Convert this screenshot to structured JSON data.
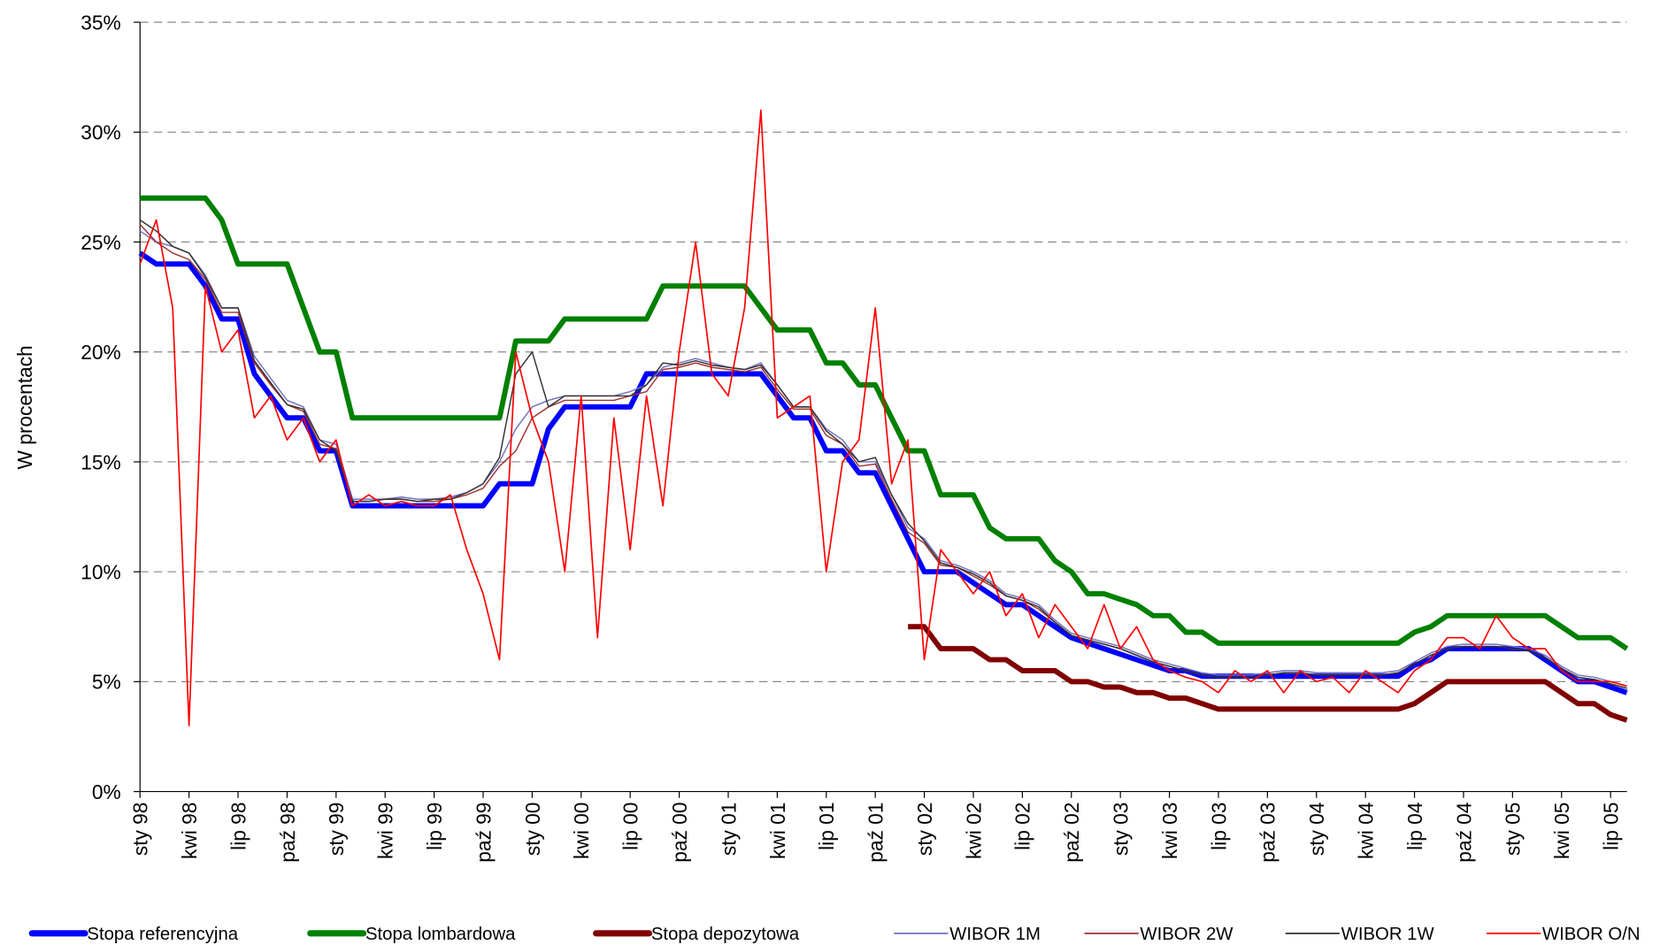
{
  "chart_data": {
    "type": "line",
    "y_label": "W procentach",
    "categories": [
      "sty 98",
      null,
      null,
      "kwi 98",
      null,
      null,
      "lip 98",
      null,
      null,
      "paź 98",
      null,
      null,
      "sty 99",
      null,
      null,
      "kwi 99",
      null,
      null,
      "lip 99",
      null,
      null,
      "paź 99",
      null,
      null,
      "sty 00",
      null,
      null,
      "kwi 00",
      null,
      null,
      "lip 00",
      null,
      null,
      "paź 00",
      null,
      null,
      "sty 01",
      null,
      null,
      "kwi 01",
      null,
      null,
      "lip 01",
      null,
      null,
      "paź 01",
      null,
      null,
      "sty 02",
      null,
      null,
      "kwi 02",
      null,
      null,
      "lip 02",
      null,
      null,
      "paź 02",
      null,
      null,
      "sty 03",
      null,
      null,
      "kwi 03",
      null,
      null,
      "lip 03",
      null,
      null,
      "paź 03",
      null,
      null,
      "sty 04",
      null,
      null,
      "kwi 04",
      null,
      null,
      "lip 04",
      null,
      null,
      "paź 04",
      null,
      null,
      "sty 05",
      null,
      null,
      "kwi 05",
      null,
      null,
      "lip 05",
      null
    ],
    "ylim": [
      0,
      35
    ],
    "yticks": [
      {
        "value": 0,
        "label": "0%"
      },
      {
        "value": 5,
        "label": "5%"
      },
      {
        "value": 10,
        "label": "10%"
      },
      {
        "value": 15,
        "label": "15%"
      },
      {
        "value": 20,
        "label": "20%"
      },
      {
        "value": 25,
        "label": "25%"
      },
      {
        "value": 30,
        "label": "30%"
      },
      {
        "value": 35,
        "label": "35%"
      }
    ],
    "grid": true,
    "legend": "bottom",
    "series": [
      {
        "name": "Stopa referencyjna",
        "color": "#0000ff",
        "width": 5,
        "values": [
          24.5,
          24,
          24,
          24,
          23,
          21.5,
          21.5,
          19,
          18,
          17,
          17,
          15.5,
          15.5,
          13,
          13,
          13,
          13,
          13,
          13,
          13,
          13,
          13,
          14,
          14,
          14,
          16.5,
          17.5,
          17.5,
          17.5,
          17.5,
          17.5,
          19,
          19,
          19,
          19,
          19,
          19,
          19,
          19,
          18,
          17,
          17,
          15.5,
          15.5,
          14.5,
          14.5,
          13,
          11.5,
          10,
          10,
          10,
          9.5,
          9,
          8.5,
          8.5,
          8,
          7.5,
          7,
          6.75,
          6.5,
          6.25,
          6,
          5.75,
          5.5,
          5.5,
          5.25,
          5.25,
          5.25,
          5.25,
          5.25,
          5.25,
          5.25,
          5.25,
          5.25,
          5.25,
          5.25,
          5.25,
          5.25,
          5.75,
          6,
          6.5,
          6.5,
          6.5,
          6.5,
          6.5,
          6.5,
          6,
          5.5,
          5,
          5,
          4.75,
          4.5
        ]
      },
      {
        "name": "Stopa lombardowa",
        "color": "#008000",
        "width": 5,
        "values": [
          27,
          27,
          27,
          27,
          27,
          26,
          24,
          24,
          24,
          24,
          22,
          20,
          20,
          17,
          17,
          17,
          17,
          17,
          17,
          17,
          17,
          17,
          17,
          20.5,
          20.5,
          20.5,
          21.5,
          21.5,
          21.5,
          21.5,
          21.5,
          21.5,
          23,
          23,
          23,
          23,
          23,
          23,
          22,
          21,
          21,
          21,
          19.5,
          19.5,
          18.5,
          18.5,
          17,
          15.5,
          15.5,
          13.5,
          13.5,
          13.5,
          12,
          11.5,
          11.5,
          11.5,
          10.5,
          10,
          9,
          9,
          8.75,
          8.5,
          8,
          8,
          7.25,
          7.25,
          6.75,
          6.75,
          6.75,
          6.75,
          6.75,
          6.75,
          6.75,
          6.75,
          6.75,
          6.75,
          6.75,
          6.75,
          7.25,
          7.5,
          8,
          8,
          8,
          8,
          8,
          8,
          8,
          7.5,
          7,
          7,
          7,
          6.5
        ]
      },
      {
        "name": "Stopa depozytowa",
        "color": "#800000",
        "width": 5,
        "values": [
          null,
          null,
          null,
          null,
          null,
          null,
          null,
          null,
          null,
          null,
          null,
          null,
          null,
          null,
          null,
          null,
          null,
          null,
          null,
          null,
          null,
          null,
          null,
          null,
          null,
          null,
          null,
          null,
          null,
          null,
          null,
          null,
          null,
          null,
          null,
          null,
          null,
          null,
          null,
          null,
          null,
          null,
          null,
          null,
          null,
          null,
          null,
          7.5,
          7.5,
          6.5,
          6.5,
          6.5,
          6,
          6,
          5.5,
          5.5,
          5.5,
          5,
          5,
          4.75,
          4.75,
          4.5,
          4.5,
          4.25,
          4.25,
          4,
          3.75,
          3.75,
          3.75,
          3.75,
          3.75,
          3.75,
          3.75,
          3.75,
          3.75,
          3.75,
          3.75,
          3.75,
          4,
          4.5,
          5,
          5,
          5,
          5,
          5,
          5,
          5,
          4.5,
          4,
          4,
          3.5,
          3.25
        ]
      },
      {
        "name": "WIBOR 1M",
        "color": "#7070c0",
        "width": 1.2,
        "values": [
          25.5,
          25,
          24.8,
          24.5,
          23.5,
          22,
          22,
          19.8,
          18.8,
          17.8,
          17.5,
          16,
          15.8,
          13.3,
          13.3,
          13.3,
          13.4,
          13.3,
          13.3,
          13.4,
          13.6,
          14,
          15,
          16.5,
          17.5,
          17.8,
          18,
          18,
          18,
          18,
          18.2,
          18.5,
          19.3,
          19.5,
          19.7,
          19.5,
          19.3,
          19.2,
          19.5,
          18.5,
          17.5,
          17.5,
          16.5,
          16,
          15,
          15,
          13.5,
          12,
          11.5,
          10.5,
          10.3,
          10,
          9.6,
          9,
          8.8,
          8.5,
          7.8,
          7.2,
          7,
          6.8,
          6.6,
          6.3,
          6,
          5.8,
          5.6,
          5.4,
          5.3,
          5.3,
          5.3,
          5.4,
          5.5,
          5.5,
          5.4,
          5.4,
          5.4,
          5.4,
          5.4,
          5.5,
          5.9,
          6.3,
          6.6,
          6.7,
          6.7,
          6.7,
          6.6,
          6.5,
          6.2,
          5.7,
          5.3,
          5.2,
          5,
          4.8
        ]
      },
      {
        "name": "WIBOR 2W",
        "color": "#a03030",
        "width": 1.2,
        "values": [
          25.8,
          25,
          24.5,
          24.2,
          23.3,
          21.8,
          21.8,
          19.5,
          18.5,
          17.6,
          17.3,
          15.8,
          15.6,
          13.2,
          13.2,
          13.3,
          13.3,
          13.2,
          13.2,
          13.3,
          13.5,
          13.8,
          14.8,
          15.5,
          17,
          17.5,
          17.8,
          17.8,
          17.8,
          17.8,
          18,
          18.2,
          19.2,
          19.3,
          19.5,
          19.3,
          19.2,
          19.1,
          19.3,
          18.3,
          17.4,
          17.4,
          16.2,
          15.8,
          14.8,
          14.9,
          13.3,
          11.8,
          11.3,
          10.3,
          10.2,
          9.8,
          9.4,
          8.9,
          8.7,
          8.3,
          7.7,
          7.1,
          6.9,
          6.7,
          6.5,
          6.2,
          5.9,
          5.7,
          5.5,
          5.3,
          5.2,
          5.2,
          5.2,
          5.3,
          5.4,
          5.4,
          5.3,
          5.3,
          5.3,
          5.3,
          5.3,
          5.4,
          5.8,
          6.2,
          6.5,
          6.6,
          6.6,
          6.6,
          6.5,
          6.4,
          6.1,
          5.6,
          5.2,
          5.1,
          4.9,
          4.7
        ]
      },
      {
        "name": "WIBOR 1W",
        "color": "#303030",
        "width": 1.2,
        "values": [
          26,
          25.5,
          24.8,
          24.5,
          23.4,
          22,
          22,
          19.6,
          18.6,
          17.6,
          17.4,
          16,
          15.5,
          13.2,
          13.2,
          13.3,
          13.3,
          13.2,
          13.3,
          13.3,
          13.6,
          14,
          15.2,
          19,
          20,
          17.5,
          18,
          18,
          18,
          18,
          18,
          18.5,
          19.5,
          19.4,
          19.6,
          19.4,
          19.3,
          19.2,
          19.4,
          18.5,
          17.5,
          17.5,
          16.4,
          15.8,
          15,
          15.2,
          13.5,
          12.2,
          11.4,
          10.4,
          10.2,
          9.9,
          9.5,
          8.9,
          8.7,
          8.4,
          7.7,
          7.1,
          6.9,
          6.7,
          6.5,
          6.2,
          5.9,
          5.7,
          5.5,
          5.3,
          5.2,
          5.2,
          5.2,
          5.3,
          5.4,
          5.4,
          5.3,
          5.3,
          5.3,
          5.3,
          5.3,
          5.4,
          5.8,
          6.2,
          6.5,
          6.6,
          6.6,
          6.6,
          6.5,
          6.4,
          6.1,
          5.6,
          5.2,
          5.1,
          4.9,
          4.7
        ]
      },
      {
        "name": "WIBOR O/N",
        "color": "#ff0000",
        "width": 1.4,
        "values": [
          24,
          26,
          22,
          3,
          23,
          20,
          21,
          17,
          18,
          16,
          17,
          15,
          16,
          13,
          13.5,
          13,
          13.2,
          13,
          13,
          13.5,
          11,
          9,
          6,
          20,
          17,
          15,
          10,
          18,
          7,
          17,
          11,
          18,
          13,
          20,
          25,
          19,
          18,
          22,
          31,
          17,
          17.5,
          18,
          10,
          15,
          16,
          22,
          14,
          16,
          6,
          11,
          10,
          9,
          10,
          8,
          9,
          7,
          8.5,
          7.5,
          6.5,
          8.5,
          6.5,
          7.5,
          6,
          5.5,
          5.2,
          5,
          4.5,
          5.5,
          5,
          5.5,
          4.5,
          5.5,
          5,
          5.2,
          4.5,
          5.5,
          5,
          4.5,
          5.5,
          6,
          7,
          7,
          6.5,
          8,
          7,
          6.5,
          6.5,
          5.5,
          5,
          5,
          5,
          4.8
        ]
      }
    ]
  }
}
